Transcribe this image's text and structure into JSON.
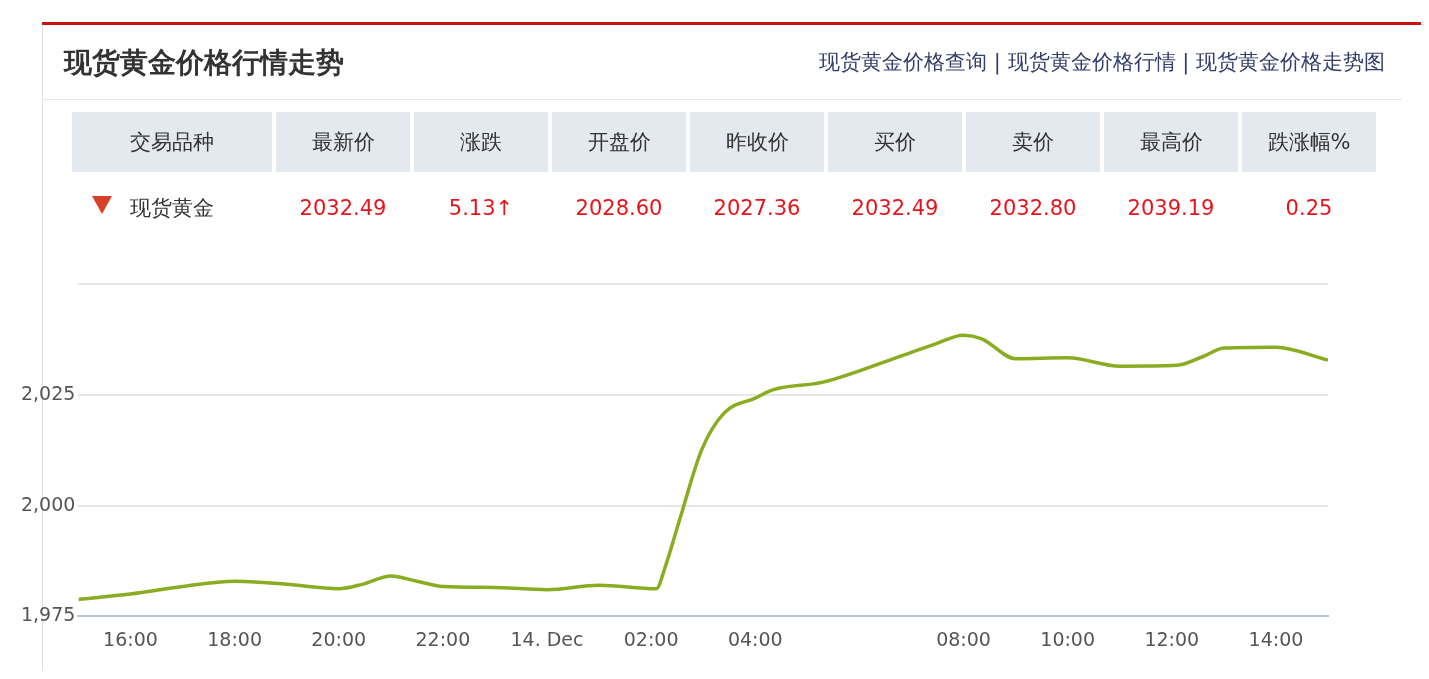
{
  "chart_data": {
    "type": "line",
    "title": "现货黄金价格行情走势",
    "annotations": [
      "现货黄金价格查询 | 现货黄金价格行情 | 现货黄金价格走势图",
      "交易品种",
      "最新价",
      "涨跌",
      "开盘价",
      "昨收价",
      "买价",
      "卖价",
      "最高价",
      "跌涨幅%",
      "现货黄金",
      "2032.49",
      "5.13↑",
      "2028.60",
      "2027.36",
      "2032.49",
      "2032.80",
      "2039.19",
      "0.25"
    ],
    "series": [
      {
        "color": "#8aac20",
        "x": [
          "--12-13T15:00",
          "--12-13T16:00",
          "--12-13T17:00",
          "--12-13T18:00",
          "--12-13T19:00",
          "--12-13T20:00",
          "--12-13T20:27",
          "--12-13T21:00",
          "--12-13T21:30",
          "--12-13T22:00",
          "--12-13T23:00",
          "--12-14T00:00",
          "--12-14T01:00",
          "--12-14T02:06",
          "--12-14T02:16",
          "--12-14T02:33",
          "--12-14T02:58",
          "--12-14T03:24",
          "--12-14T04:00",
          "--12-14T04:21",
          "--12-14T05:18",
          "--12-14T06:42",
          "--12-14T07:27",
          "--12-14T08:00",
          "--12-14T08:21",
          "--12-14T09:00",
          "--12-14T10:00",
          "--12-14T11:00",
          "--12-14T12:06",
          "--12-14T12:36",
          "--12-14T13:00",
          "--12-14T14:00",
          "--12-14T15:00"
        ],
        "values": [
          1978.8,
          1980,
          1981.7,
          1982.9,
          1982.2,
          1981.2,
          1982.2,
          1984.1,
          1982.9,
          1981.7,
          1981.5,
          1981,
          1982,
          1981.2,
          1986,
          1996.9,
          2012.5,
          2020.9,
          2024.3,
          2026.2,
          2027.9,
          2033.4,
          2036.5,
          2038.5,
          2037.7,
          2033.2,
          2033.4,
          2031.5,
          2031.7,
          2033.7,
          2035.6,
          2035.8,
          2032.9
        ]
      }
    ],
    "xlim": [
      "--12-13T15:00",
      "--12-14T15:00"
    ],
    "xticks": [
      {
        "value": "--12-13T16:00",
        "label": "16:00"
      },
      {
        "value": "--12-13T18:00",
        "label": "18:00"
      },
      {
        "value": "--12-13T20:00",
        "label": "20:00"
      },
      {
        "value": "--12-13T22:00",
        "label": "22:00"
      },
      {
        "value": "--12-14T00:00",
        "label": "14. Dec"
      },
      {
        "value": "--12-14T02:00",
        "label": "02:00"
      },
      {
        "value": "--12-14T04:00",
        "label": "04:00"
      },
      {
        "value": "--12-14T08:00",
        "label": "08:00"
      },
      {
        "value": "--12-14T10:00",
        "label": "10:00"
      },
      {
        "value": "--12-14T12:00",
        "label": "12:00"
      },
      {
        "value": "--12-14T14:00",
        "label": "14:00"
      }
    ],
    "ylim": [
      1975,
      2050
    ],
    "yticks": [
      {
        "value": 1975,
        "label": "1,975"
      },
      {
        "value": 2000,
        "label": "2,000"
      },
      {
        "value": 2025,
        "label": "2,025"
      },
      {
        "value": 2050,
        "label": null
      }
    ],
    "grid": "y",
    "legend": false,
    "marker": "none",
    "line_style": "solid"
  }
}
